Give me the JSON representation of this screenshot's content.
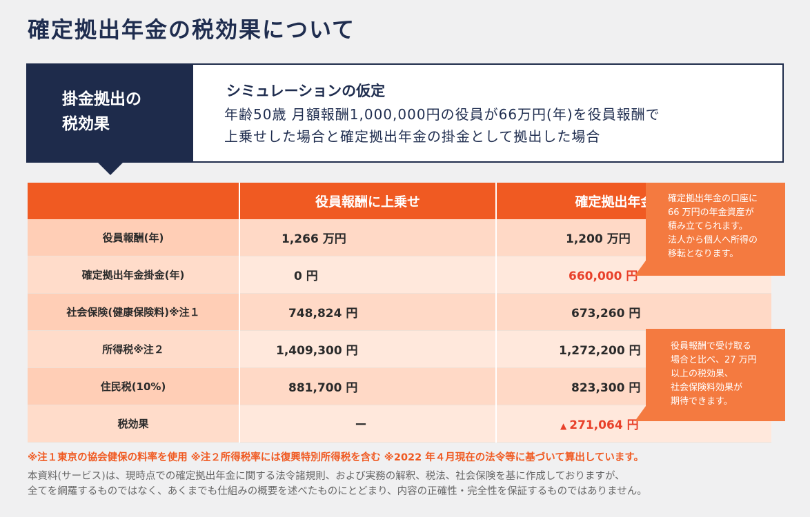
{
  "page_title": "確定拠出年金の税効果について",
  "header": {
    "label_line1": "掛金拠出の",
    "label_line2": "税効果",
    "sim_title": "シミュレーションの仮定",
    "sim_line1": "年齢50歳 月額報酬1,000,000円の役員が66万円(年)を役員報酬で",
    "sim_line2": "上乗せした場合と確定拠出年金の掛金として拠出した場合"
  },
  "table": {
    "col_headers": [
      "",
      "役員報酬に上乗せ",
      "確定拠出年金で拠出"
    ],
    "rows": [
      {
        "label": "役員報酬(年)",
        "a": "1,266 万円",
        "b": "1,200 万円"
      },
      {
        "label": "確定拠出年金掛金(年)",
        "a": "0 円",
        "b": "660,000 円"
      },
      {
        "label": "社会保険(健康保険料)※注１",
        "a": "748,824 円",
        "b": "673,260 円"
      },
      {
        "label": "所得税※注２",
        "a": "1,409,300 円",
        "b": "1,272,200 円"
      },
      {
        "label": "住民税(10%)",
        "a": "881,700 円",
        "b": "823,300 円"
      },
      {
        "label": "税効果",
        "a": "ー",
        "b_marker": "▲",
        "b": "271,064 円"
      }
    ]
  },
  "callouts": {
    "c1": [
      "確定拠出年金の口座に",
      "66 万円の年金資産が",
      "積み立てられます。",
      "法人から個人へ所得の",
      "移転となります。"
    ],
    "c2": [
      "役員報酬で受け取る",
      "場合と比べ、27 万円",
      "以上の税効果、",
      "社会保険料効果が",
      "期待できます。"
    ]
  },
  "note": "※注１東京の協会健保の料率を使用 ※注２所得税率には復興特別所得税を含む ※2022 年４月現在の法令等に基づいて算出しています。",
  "disclaimer_line1": "本資料(サービス)は、現時点での確定拠出年金に関する法令諸規則、および実務の解釈、税法、社会保険を基に作成しておりますが、",
  "disclaimer_line2": "全てを網羅するものではなく、あくまでも仕組みの概要を述べたものにとどまり、内容の正確性・完全性を保証するものではありません。",
  "colors": {
    "navy": "#1e2b4b",
    "orange": "#f05a22",
    "callout": "#f47a40",
    "red": "#e8402a"
  }
}
